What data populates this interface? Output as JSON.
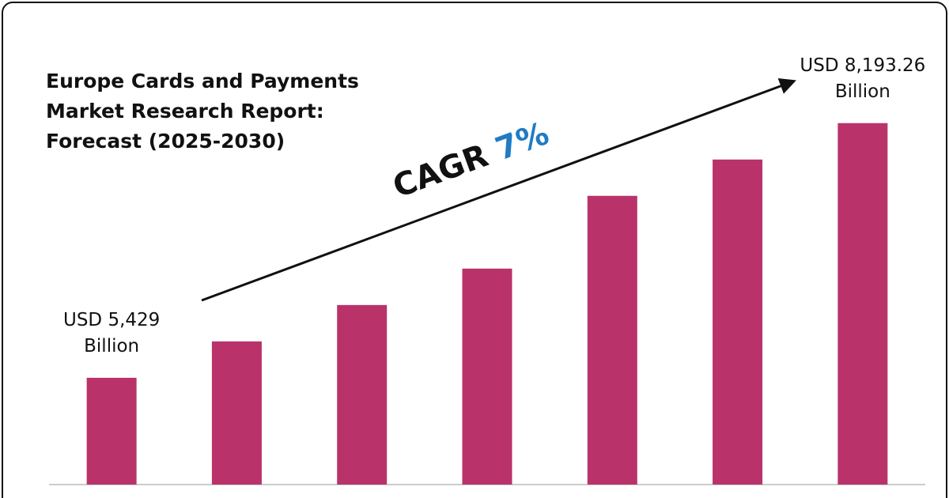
{
  "chart_data": {
    "type": "bar",
    "title": "Europe Cards and Payments Market Research Report: Forecast (2025-2030)",
    "annotation": {
      "text": "CAGR",
      "highlight": "7%"
    },
    "categories": [
      null,
      null,
      null,
      null,
      null,
      null,
      null
    ],
    "values": [
      5429,
      5824,
      6219,
      6614,
      7404,
      7798,
      8193.26
    ],
    "value_labels": [
      "USD 5,429 Billion",
      null,
      null,
      null,
      null,
      null,
      "USD 8,193.26 Billion"
    ],
    "color": "#b9336a",
    "ylim": [
      4270,
      8500
    ]
  }
}
